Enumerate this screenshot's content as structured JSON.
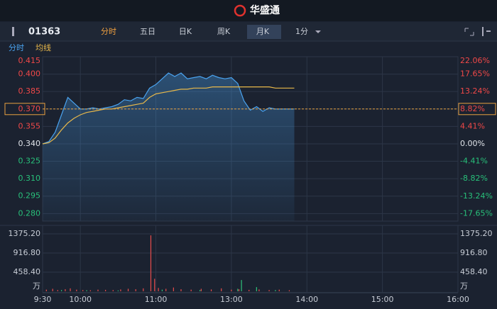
{
  "header": {
    "logo": "华盛通"
  },
  "toolbar": {
    "code": "01363",
    "tabs": [
      "分时",
      "五日",
      "日K",
      "周K",
      "月K",
      "1分"
    ],
    "active_tab": 0,
    "highlighted_tab": 4
  },
  "chart_data": [
    {
      "type": "line",
      "x": [
        0,
        5,
        10,
        15,
        20,
        25,
        30,
        35,
        40,
        45,
        50,
        55,
        60,
        65,
        70,
        75,
        80,
        85,
        90,
        95,
        100,
        105,
        110,
        115,
        120,
        125,
        130,
        135,
        140,
        145,
        150,
        155,
        160,
        165,
        170,
        175,
        180,
        185,
        190,
        195,
        200
      ],
      "series": [
        {
          "name": "分时",
          "color": "#4aa3ef",
          "area": true,
          "values": [
            0.34,
            0.342,
            0.35,
            0.365,
            0.38,
            0.375,
            0.37,
            0.37,
            0.371,
            0.37,
            0.371,
            0.372,
            0.374,
            0.378,
            0.377,
            0.38,
            0.379,
            0.388,
            0.391,
            0.396,
            0.401,
            0.398,
            0.401,
            0.396,
            0.397,
            0.398,
            0.396,
            0.399,
            0.397,
            0.396,
            0.397,
            0.392,
            0.377,
            0.369,
            0.372,
            0.368,
            0.371,
            0.37,
            0.37,
            0.37,
            0.37
          ]
        },
        {
          "name": "均线",
          "color": "#e8b84a",
          "values": [
            0.34,
            0.341,
            0.345,
            0.352,
            0.358,
            0.362,
            0.365,
            0.367,
            0.368,
            0.369,
            0.37,
            0.37,
            0.371,
            0.372,
            0.373,
            0.374,
            0.375,
            0.38,
            0.383,
            0.384,
            0.385,
            0.386,
            0.387,
            0.387,
            0.388,
            0.388,
            0.388,
            0.389,
            0.389,
            0.389,
            0.389,
            0.389,
            0.389,
            0.389,
            0.389,
            0.389,
            0.389,
            0.388,
            0.388,
            0.388,
            0.388
          ]
        }
      ],
      "xlim": [
        0,
        330
      ],
      "xticks": [
        0,
        30,
        90,
        150,
        210,
        270,
        330
      ],
      "ylim": [
        0.2735,
        0.415
      ],
      "yticks": [
        0.415,
        {
          "value": 0.4,
          "label": "0.400"
        },
        0.385,
        {
          "value": 0.37,
          "label": "0.370"
        },
        0.355,
        {
          "value": 0.34,
          "label": "0.340"
        },
        0.325,
        {
          "value": 0.31,
          "label": "0.310"
        },
        0.295,
        {
          "value": 0.28,
          "label": "0.280"
        }
      ],
      "y2lim": [
        -19.56,
        22.06
      ],
      "y2ticks": [
        {
          "value": 22.06,
          "label": "22.06%"
        },
        {
          "value": 17.65,
          "label": "17.65%"
        },
        {
          "value": 13.24,
          "label": "13.24%"
        },
        {
          "value": 8.82,
          "label": "8.82%"
        },
        {
          "value": 4.41,
          "label": "4.41%"
        },
        {
          "value": 0,
          "label": "0.00%"
        },
        {
          "value": -4.41,
          "label": "-4.41%"
        },
        {
          "value": -8.82,
          "label": "-8.82%"
        },
        {
          "value": -13.24,
          "label": "-13.24%"
        },
        {
          "value": -17.65,
          "label": "-17.65%"
        }
      ],
      "crosshair_y": 0.37,
      "grid": true
    },
    {
      "type": "bar",
      "unit_label": "万",
      "series": [
        {
          "color": "#e84c4c",
          "x": [
            3,
            8,
            12,
            18,
            22,
            27,
            32,
            38,
            44,
            50,
            56,
            62,
            68,
            74,
            80,
            86,
            89,
            92,
            98,
            104,
            110,
            118,
            126,
            134,
            142,
            150,
            156,
            164,
            172,
            180,
            188,
            196
          ],
          "values": [
            40,
            60,
            30,
            50,
            70,
            40,
            30,
            25,
            40,
            35,
            30,
            45,
            60,
            50,
            70,
            1340,
            300,
            80,
            60,
            90,
            50,
            40,
            60,
            45,
            70,
            40,
            50,
            35,
            45,
            30,
            40,
            25
          ]
        },
        {
          "color": "#2fc27a",
          "x": [
            15,
            35,
            60,
            95,
            125,
            155,
            158,
            170,
            185
          ],
          "values": [
            30,
            25,
            20,
            40,
            30,
            60,
            270,
            100,
            30
          ]
        }
      ],
      "xlim": [
        0,
        330
      ],
      "xticks": [
        {
          "value": 0,
          "label": "9:30"
        },
        {
          "value": 30,
          "label": "10:00"
        },
        {
          "value": 90,
          "label": "11:00"
        },
        {
          "value": 150,
          "label": "13:00"
        },
        {
          "value": 210,
          "label": "14:00"
        },
        {
          "value": 270,
          "label": "15:00"
        },
        {
          "value": 330,
          "label": "16:00"
        }
      ],
      "ylim": [
        0,
        1375.2
      ],
      "yticks": [
        {
          "value": 458.4,
          "label": "458.40"
        },
        {
          "value": 916.8,
          "label": "916.80"
        },
        {
          "value": 1375.2,
          "label": "1375.20"
        }
      ],
      "grid": true
    }
  ]
}
